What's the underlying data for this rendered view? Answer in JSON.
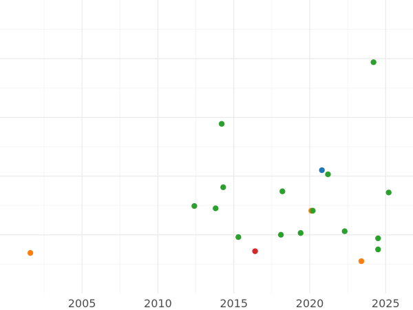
{
  "chart_data": {
    "type": "scatter",
    "title": "",
    "xlabel": "",
    "ylabel": "",
    "xlim": [
      1999.6,
      2026.8
    ],
    "x_ticks": [
      2005,
      2010,
      2015,
      2020,
      2025
    ],
    "x_tick_labels": [
      "2005",
      "2010",
      "2015",
      "2020",
      "2025"
    ],
    "ylim": [
      0,
      5
    ],
    "y_gridlines": [
      1,
      2,
      3,
      4
    ],
    "grid": true,
    "legend": "none",
    "colors": {
      "green": "#2ca02c",
      "orange": "#ff7f0e",
      "blue": "#1f77b4",
      "red": "#d62728",
      "grid_major": "#ebebeb",
      "grid_minor": "#f5f5f5"
    },
    "points": [
      {
        "x": 2001.6,
        "y": 0.69,
        "color": "orange"
      },
      {
        "x": 2012.4,
        "y": 1.49,
        "color": "green"
      },
      {
        "x": 2013.8,
        "y": 1.45,
        "color": "green"
      },
      {
        "x": 2014.2,
        "y": 2.89,
        "color": "green"
      },
      {
        "x": 2014.3,
        "y": 1.81,
        "color": "green"
      },
      {
        "x": 2015.3,
        "y": 0.96,
        "color": "green"
      },
      {
        "x": 2016.4,
        "y": 0.72,
        "color": "red"
      },
      {
        "x": 2018.1,
        "y": 1.0,
        "color": "green"
      },
      {
        "x": 2018.2,
        "y": 1.74,
        "color": "green"
      },
      {
        "x": 2019.4,
        "y": 1.03,
        "color": "green"
      },
      {
        "x": 2020.1,
        "y": 1.41,
        "color": "orange"
      },
      {
        "x": 2020.2,
        "y": 1.41,
        "color": "green"
      },
      {
        "x": 2020.8,
        "y": 2.1,
        "color": "blue"
      },
      {
        "x": 2021.2,
        "y": 2.03,
        "color": "green"
      },
      {
        "x": 2022.3,
        "y": 1.06,
        "color": "green"
      },
      {
        "x": 2023.4,
        "y": 0.55,
        "color": "orange"
      },
      {
        "x": 2024.2,
        "y": 3.94,
        "color": "green"
      },
      {
        "x": 2024.5,
        "y": 0.94,
        "color": "green"
      },
      {
        "x": 2024.5,
        "y": 0.75,
        "color": "green"
      },
      {
        "x": 2025.2,
        "y": 1.72,
        "color": "green"
      }
    ]
  }
}
